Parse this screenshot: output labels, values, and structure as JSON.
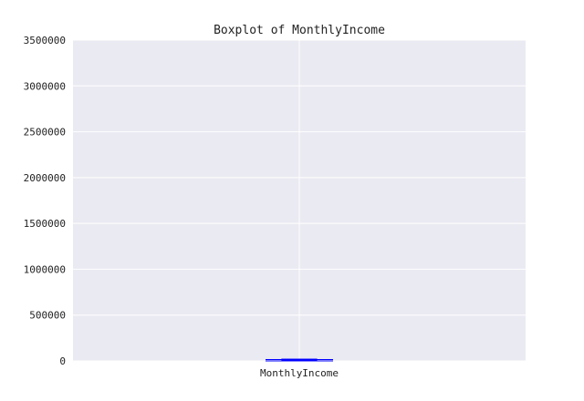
{
  "chart_data": {
    "type": "box",
    "title": "Boxplot of MonthlyIncome",
    "xlabel": "",
    "ylabel": "",
    "categories": [
      "MonthlyIncome"
    ],
    "ylim": [
      0,
      3500000
    ],
    "yticks": [
      0,
      500000,
      1000000,
      1500000,
      2000000,
      2500000,
      3000000,
      3500000
    ],
    "ytick_labels": [
      "0",
      "500000",
      "1000000",
      "1500000",
      "2000000",
      "2500000",
      "3000000",
      "3500000"
    ],
    "grid": true,
    "box": {
      "whisker_low": 0,
      "q1": 3400,
      "median": 5400,
      "q3": 8250,
      "whisker_high": 15500
    },
    "colors": {
      "plot_background": "#eaeaf2",
      "grid": "#ffffff",
      "box": "#0000ff",
      "text": "#222222"
    }
  }
}
